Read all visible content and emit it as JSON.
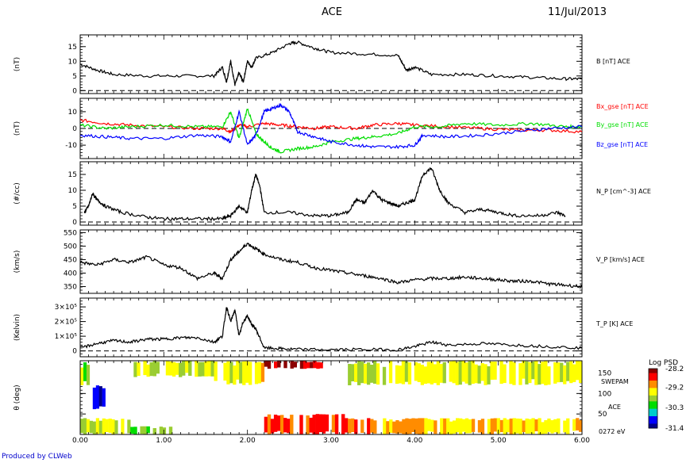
{
  "header": {
    "title": "ACE",
    "date": "11/Jul/2013"
  },
  "footer": {
    "produced_by": "Produced by CLWeb"
  },
  "colors": {
    "bx": "#ff0000",
    "by": "#00dd00",
    "bz": "#0000ff",
    "colorbar": [
      "#8b0000",
      "#ff0000",
      "#ff8c00",
      "#ffff00",
      "#9acd32",
      "#00dd00",
      "#00cccc",
      "#0000ff",
      "#00008b"
    ]
  },
  "chart_data": [
    {
      "type": "line",
      "ylabel": "(nT)",
      "ticks": [
        0,
        5,
        10,
        15
      ],
      "ylim": [
        -1,
        19
      ],
      "series": [
        {
          "name": "B [nT] ACE",
          "color": "#000000",
          "x": [
            0,
            0.2,
            0.4,
            0.8,
            1.2,
            1.6,
            1.7,
            1.75,
            1.8,
            1.85,
            1.9,
            1.95,
            2.0,
            2.05,
            2.1,
            2.3,
            2.5,
            2.6,
            2.8,
            3.0,
            3.4,
            3.8,
            3.9,
            4.0,
            4.2,
            4.6,
            5.0,
            5.4,
            5.8,
            6.0
          ],
          "y": [
            9,
            7,
            5.5,
            5,
            5,
            5,
            8,
            3,
            10,
            2,
            6,
            3,
            10,
            8,
            11,
            13,
            16,
            16.5,
            14.5,
            13,
            12.5,
            12,
            7,
            8,
            5.5,
            5.5,
            5,
            4.5,
            4,
            4
          ]
        }
      ]
    },
    {
      "type": "line",
      "ylabel": "(nT)",
      "ticks": [
        -10,
        0,
        10
      ],
      "ylim": [
        -18,
        18
      ],
      "series": [
        {
          "name": "Bx_gse [nT] ACE",
          "color": "#ff0000",
          "x": [
            0,
            0.3,
            0.6,
            1.0,
            1.4,
            1.7,
            1.8,
            1.9,
            2.0,
            2.2,
            2.4,
            2.6,
            2.8,
            3.0,
            3.3,
            3.5,
            3.8,
            4.0,
            4.4,
            4.8,
            5.2,
            5.6,
            6.0
          ],
          "y": [
            5,
            3,
            2,
            1,
            0,
            0,
            -2,
            2,
            1,
            3,
            2,
            1,
            0,
            1,
            0,
            2,
            3,
            2,
            1,
            0,
            -1,
            -1,
            -2
          ]
        },
        {
          "name": "By_gse [nT] ACE",
          "color": "#00dd00",
          "x": [
            0,
            0.3,
            0.6,
            1.0,
            1.4,
            1.7,
            1.8,
            1.9,
            2.0,
            2.1,
            2.2,
            2.3,
            2.4,
            2.6,
            2.8,
            3.0,
            3.3,
            3.5,
            3.8,
            4.0,
            4.3,
            4.6,
            5.0,
            5.4,
            5.8,
            6.0
          ],
          "y": [
            2,
            0,
            1,
            2,
            1,
            1,
            10,
            -6,
            12,
            -3,
            -8,
            -12,
            -14,
            -12,
            -11,
            -8,
            -6,
            -5,
            -3,
            1,
            1,
            3,
            2,
            3,
            1,
            1
          ]
        },
        {
          "name": "Bz_gse [nT] ACE",
          "color": "#0000ff",
          "x": [
            0,
            0.3,
            0.6,
            1.0,
            1.4,
            1.7,
            1.8,
            1.9,
            2.0,
            2.1,
            2.2,
            2.3,
            2.4,
            2.5,
            2.6,
            2.8,
            3.0,
            3.3,
            3.5,
            3.8,
            4.0,
            4.1,
            4.4,
            4.8,
            5.2,
            5.6,
            6.0
          ],
          "y": [
            -4,
            -5,
            -6,
            -6,
            -4,
            -5,
            -8,
            10,
            -10,
            -4,
            10,
            12,
            14,
            10,
            -2,
            -5,
            -8,
            -10,
            -11,
            -11,
            -10,
            -4,
            -5,
            -4,
            -2,
            0,
            1
          ]
        }
      ]
    },
    {
      "type": "line",
      "ylabel": "(#/cc)",
      "ticks": [
        0,
        5,
        10,
        15
      ],
      "ylim": [
        -1,
        19
      ],
      "series": [
        {
          "name": "N_P [cm^-3] ACE",
          "color": "#000000",
          "x": [
            0.05,
            0.1,
            0.15,
            0.2,
            0.3,
            0.5,
            0.8,
            1.0,
            1.2,
            1.5,
            1.7,
            1.8,
            1.9,
            2.0,
            2.05,
            2.1,
            2.15,
            2.2,
            2.5,
            2.8,
            3.0,
            3.2,
            3.3,
            3.4,
            3.5,
            3.6,
            3.7,
            3.8,
            3.9,
            4.0,
            4.1,
            4.2,
            4.3,
            4.4,
            4.6,
            4.8,
            5.0,
            5.2,
            5.5,
            5.7,
            5.8
          ],
          "y": [
            3,
            5,
            9,
            7,
            5,
            3,
            1.5,
            1,
            1,
            1,
            1,
            2,
            5,
            3,
            10,
            15,
            11,
            3,
            3,
            2,
            2,
            3,
            7,
            6,
            10,
            7,
            6,
            5,
            6,
            7,
            15,
            17,
            10,
            6,
            3,
            4,
            3,
            2,
            2,
            3,
            2
          ]
        }
      ]
    },
    {
      "type": "line",
      "ylabel": "(km/s)",
      "ticks": [
        350,
        400,
        450,
        500,
        550
      ],
      "ylim": [
        325,
        560
      ],
      "series": [
        {
          "name": "V_P [km/s] ACE",
          "color": "#000000",
          "x": [
            0,
            0.2,
            0.4,
            0.6,
            0.8,
            1.0,
            1.2,
            1.4,
            1.6,
            1.7,
            1.8,
            1.9,
            2.0,
            2.1,
            2.2,
            2.4,
            2.6,
            2.8,
            3.0,
            3.2,
            3.4,
            3.6,
            3.8,
            4.0,
            4.2,
            4.4,
            4.6,
            4.8,
            5.0,
            5.2,
            5.4,
            5.6,
            5.8,
            6.0
          ],
          "y": [
            440,
            430,
            450,
            440,
            460,
            430,
            420,
            380,
            400,
            380,
            450,
            480,
            510,
            490,
            470,
            450,
            440,
            420,
            410,
            400,
            390,
            380,
            365,
            375,
            380,
            380,
            385,
            380,
            375,
            370,
            370,
            360,
            355,
            350
          ]
        }
      ]
    },
    {
      "type": "line",
      "ylabel": "(Kelvin)",
      "ticks": [
        0,
        100000,
        200000,
        300000
      ],
      "tick_labels": [
        "0",
        "1×10⁵",
        "2×10⁵",
        "3×10⁵"
      ],
      "ylim": [
        -40000,
        360000
      ],
      "series": [
        {
          "name": "T_P [K] ACE",
          "color": "#000000",
          "x": [
            0,
            0.2,
            0.4,
            0.6,
            0.8,
            1.0,
            1.2,
            1.4,
            1.6,
            1.7,
            1.75,
            1.8,
            1.85,
            1.9,
            1.95,
            2.0,
            2.05,
            2.1,
            2.2,
            2.4,
            2.6,
            3.0,
            3.4,
            3.8,
            4.0,
            4.2,
            4.4,
            4.8,
            5.2,
            5.6,
            6.0
          ],
          "y": [
            20000,
            50000,
            70000,
            60000,
            80000,
            80000,
            90000,
            90000,
            60000,
            100000,
            300000,
            200000,
            280000,
            100000,
            200000,
            240000,
            180000,
            150000,
            20000,
            15000,
            10000,
            8000,
            10000,
            8000,
            30000,
            60000,
            40000,
            50000,
            40000,
            30000,
            20000
          ]
        }
      ]
    },
    {
      "type": "heatmap",
      "ylabel": "θ (deg)",
      "ticks": [
        50,
        100,
        150
      ],
      "ylim": [
        0,
        180
      ],
      "instrument": "SWEPAM",
      "source": "ACE",
      "energy": "0272 eV",
      "colorbar": {
        "title": "Log PSD",
        "ticks": [
          -28.2,
          -29.2,
          -30.3,
          -31.4
        ]
      },
      "regions": [
        {
          "x": [
            0.0,
            0.15
          ],
          "y": [
            120,
            180
          ],
          "value": -29.8
        },
        {
          "x": [
            0.15,
            0.3
          ],
          "y": [
            60,
            120
          ],
          "value": -31.0
        },
        {
          "x": [
            0.0,
            0.6
          ],
          "y": [
            0,
            40
          ],
          "value": -29.6
        },
        {
          "x": [
            0.6,
            1.1
          ],
          "y": [
            0,
            20
          ],
          "value": -29.9
        },
        {
          "x": [
            0.6,
            1.6
          ],
          "y": [
            140,
            180
          ],
          "value": -29.7
        },
        {
          "x": [
            1.6,
            2.2
          ],
          "y": [
            120,
            180
          ],
          "value": -29.4
        },
        {
          "x": [
            2.2,
            2.9
          ],
          "y": [
            160,
            180
          ],
          "value": -28.4
        },
        {
          "x": [
            2.2,
            3.2
          ],
          "y": [
            0,
            50
          ],
          "value": -28.6
        },
        {
          "x": [
            3.2,
            4.0
          ],
          "y": [
            0,
            40
          ],
          "value": -29.0
        },
        {
          "x": [
            3.2,
            6.0
          ],
          "y": [
            120,
            180
          ],
          "value": -29.5
        },
        {
          "x": [
            4.0,
            6.0
          ],
          "y": [
            0,
            40
          ],
          "value": -29.3
        }
      ]
    }
  ],
  "xaxis": {
    "ticks": [
      0,
      1,
      2,
      3,
      4,
      5,
      6
    ],
    "labels": [
      "0.00",
      "1.00",
      "2.00",
      "3.00",
      "4.00",
      "5.00",
      "6.00"
    ],
    "range": [
      0,
      6
    ]
  }
}
